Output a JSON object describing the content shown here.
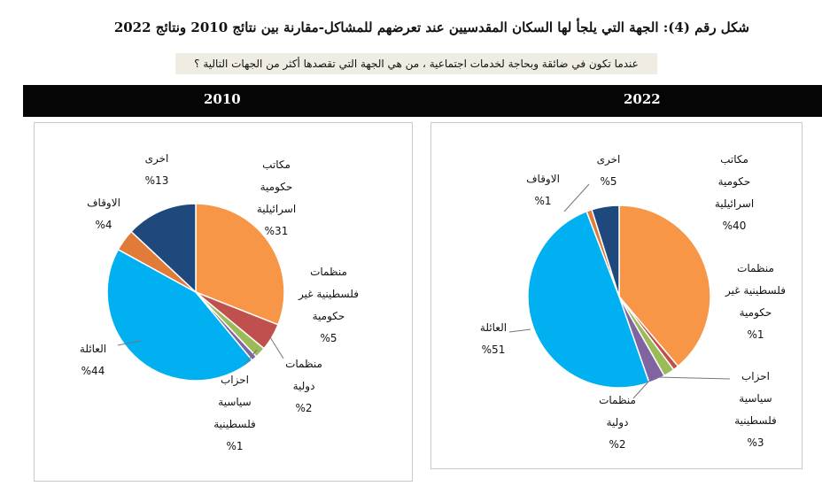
{
  "header": {
    "title": "شكل رقم (4): الجهة التي يلجأ لها السكان المقدسيين عند تعرضهم للمشاكل-مقارنة بين نتائج 2010 ونتائج 2022",
    "subtitle": "عندما تكون في ضائقة وبحاجة لخدمات اجتماعية ، من هي الجهة التي تقصدها أكثر من الجهات التالية ؟"
  },
  "years": {
    "left": "2010",
    "right": "2022"
  },
  "colors": {
    "israeli_gov": "#f79646",
    "palestinian_ngo": "#c0504d",
    "intl_org": "#9bbb59",
    "parties": "#8064a2",
    "family": "#00b0f0",
    "awqaf": "#e07b39",
    "other": "#1f497d"
  },
  "chart_data": [
    {
      "type": "pie",
      "title": "2010",
      "slices": [
        {
          "label": "مكاتب حكومية اسرائيلية",
          "value": 31,
          "value_label": "%31",
          "color": "#f79646",
          "label_lines": [
            "مكاتب",
            "حكومية",
            "اسرائيلية"
          ]
        },
        {
          "label": "منظمات فلسطينية غير حكومية",
          "value": 5,
          "value_label": "%5",
          "color": "#c0504d",
          "label_lines": [
            "منظمات",
            "فلسطينية غير",
            "حكومية"
          ]
        },
        {
          "label": "منظمات دولية",
          "value": 2,
          "value_label": "%2",
          "color": "#9bbb59",
          "label_lines": [
            "منظمات",
            "دولية"
          ]
        },
        {
          "label": "احزاب سياسية فلسطينية",
          "value": 1,
          "value_label": "%1",
          "color": "#8064a2",
          "label_lines": [
            "احزاب",
            "سياسية",
            "فلسطينية"
          ]
        },
        {
          "label": "العائلة",
          "value": 44,
          "value_label": "%44",
          "color": "#00b0f0",
          "label_lines": [
            "العائلة"
          ]
        },
        {
          "label": "الاوقاف",
          "value": 4,
          "value_label": "%4",
          "color": "#e07b39",
          "label_lines": [
            "الاوقاف"
          ]
        },
        {
          "label": "اخرى",
          "value": 13,
          "value_label": "%13",
          "color": "#1f497d",
          "label_lines": [
            "اخرى"
          ]
        }
      ]
    },
    {
      "type": "pie",
      "title": "2022",
      "slices": [
        {
          "label": "مكاتب حكومية اسرائيلية",
          "value": 40,
          "value_label": "%40",
          "color": "#f79646",
          "label_lines": [
            "مكاتب",
            "حكومية",
            "اسرائيلية"
          ]
        },
        {
          "label": "منظمات فلسطينية غير حكومية",
          "value": 1,
          "value_label": "%1",
          "color": "#c0504d",
          "label_lines": [
            "منظمات",
            "فلسطينية غير",
            "حكومية"
          ]
        },
        {
          "label": "منظمات دولية",
          "value": 2,
          "value_label": "%2",
          "color": "#9bbb59",
          "label_lines": [
            "منظمات",
            "دولية"
          ]
        },
        {
          "label": "احزاب سياسية فلسطينية",
          "value": 3,
          "value_label": "%3",
          "color": "#8064a2",
          "label_lines": [
            "احزاب",
            "سياسية",
            "فلسطينية"
          ]
        },
        {
          "label": "العائلة",
          "value": 51,
          "value_label": "%51",
          "color": "#00b0f0",
          "label_lines": [
            "العائلة"
          ]
        },
        {
          "label": "الاوقاف",
          "value": 1,
          "value_label": "%1",
          "color": "#e07b39",
          "label_lines": [
            "الاوقاف"
          ]
        },
        {
          "label": "اخرى",
          "value": 5,
          "value_label": "%5",
          "color": "#1f497d",
          "label_lines": [
            "اخرى"
          ]
        }
      ]
    }
  ]
}
